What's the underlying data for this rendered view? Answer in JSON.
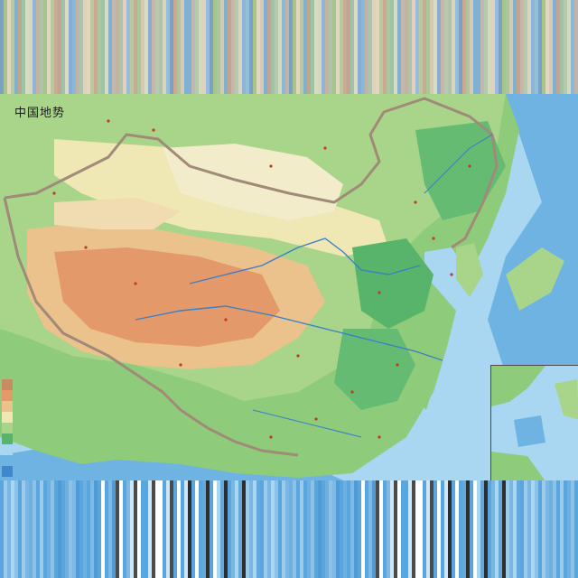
{
  "map": {
    "title": "中国地势",
    "colors": {
      "sea_deep": "#5aa6dc",
      "sea_shallow": "#a9d6f0",
      "lowland": "#58b46a",
      "hills": "#a8d58a",
      "plateau_low": "#efe7b4",
      "plateau_mid": "#ebc18c",
      "plateau_high": "#e3996a",
      "border": "#a08a78",
      "river": "#3b7fc8"
    }
  },
  "top_band_colors": [
    "#7aa0c6",
    "#b8c9a0",
    "#d9c7b4",
    "#9bc3a6",
    "#c7b5a7",
    "#8fb6d2",
    "#e0d2b8",
    "#a6c48c",
    "#c9a98f",
    "#7fb1cf",
    "#d7dcc0",
    "#b4c9b0",
    "#c6b2a0",
    "#94bfd9",
    "#e2d6c0",
    "#a9c79c",
    "#bfa594",
    "#86afcf",
    "#d4d9bb",
    "#adc3ae"
  ],
  "bottom_band_colors": [
    "#5aa6dc",
    "#7db9e3",
    "#5aa6dc",
    "#a9d6f0",
    "#6db0df",
    "#ffffff",
    "#5aa6dc",
    "#9ccbea",
    "#4f9bd6",
    "#cfe6f4",
    "#62aadd",
    "#8dc2e6",
    "#5aa6dc",
    "#ffffff",
    "#7ab6e2",
    "#5aa6dc",
    "#4a4a4a",
    "#2e2e2e"
  ]
}
